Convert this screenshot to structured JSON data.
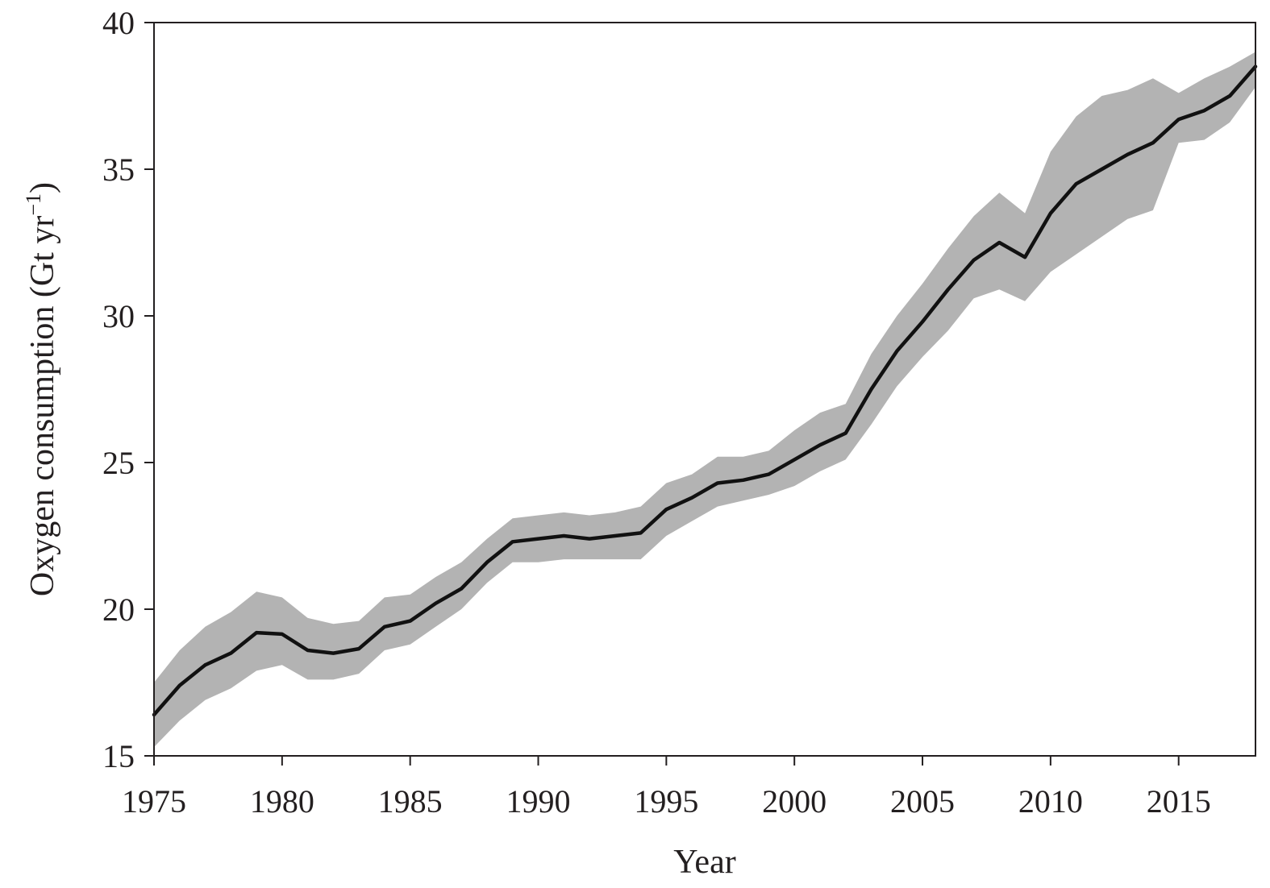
{
  "chart_data": {
    "type": "line",
    "xlabel": "Year",
    "ylabel_main": "Oxygen consumption (Gt yr",
    "ylabel_sup": "−1",
    "ylabel_close": ")",
    "xlim": [
      1975,
      2018
    ],
    "ylim": [
      15,
      40
    ],
    "xticks": [
      1975,
      1980,
      1985,
      1990,
      1995,
      2000,
      2005,
      2010,
      2015
    ],
    "yticks": [
      15,
      20,
      25,
      30,
      35,
      40
    ],
    "grid": false,
    "line_color": "#111111",
    "band_color": "#b3b3b3",
    "years": [
      1975,
      1976,
      1977,
      1978,
      1979,
      1980,
      1981,
      1982,
      1983,
      1984,
      1985,
      1986,
      1987,
      1988,
      1989,
      1990,
      1991,
      1992,
      1993,
      1994,
      1995,
      1996,
      1997,
      1998,
      1999,
      2000,
      2001,
      2002,
      2003,
      2004,
      2005,
      2006,
      2007,
      2008,
      2009,
      2010,
      2011,
      2012,
      2013,
      2014,
      2015,
      2016,
      2017,
      2018
    ],
    "series": [
      {
        "values": [
          16.4,
          17.4,
          18.1,
          18.5,
          19.2,
          19.15,
          18.6,
          18.5,
          18.65,
          19.4,
          19.6,
          20.2,
          20.7,
          21.6,
          22.3,
          22.4,
          22.5,
          22.4,
          22.5,
          22.6,
          23.4,
          23.8,
          24.3,
          24.4,
          24.6,
          25.1,
          25.6,
          26.0,
          27.5,
          28.8,
          29.8,
          30.9,
          31.9,
          32.5,
          32.0,
          33.5,
          34.5,
          35.0,
          35.5,
          35.9,
          36.7,
          37.0,
          37.5,
          38.5
        ]
      }
    ],
    "band_upper": [
      17.5,
      18.6,
      19.4,
      19.9,
      20.6,
      20.4,
      19.7,
      19.5,
      19.6,
      20.4,
      20.5,
      21.1,
      21.6,
      22.4,
      23.1,
      23.2,
      23.3,
      23.2,
      23.3,
      23.5,
      24.3,
      24.6,
      25.2,
      25.2,
      25.4,
      26.1,
      26.7,
      27.0,
      28.7,
      30.0,
      31.1,
      32.3,
      33.4,
      34.2,
      33.5,
      35.6,
      36.8,
      37.5,
      37.7,
      38.1,
      37.6,
      38.1,
      38.5,
      39.0
    ],
    "band_lower": [
      15.3,
      16.2,
      16.9,
      17.3,
      17.9,
      18.1,
      17.6,
      17.6,
      17.8,
      18.6,
      18.8,
      19.4,
      20.0,
      20.9,
      21.6,
      21.6,
      21.7,
      21.7,
      21.7,
      21.7,
      22.5,
      23.0,
      23.5,
      23.7,
      23.9,
      24.2,
      24.7,
      25.1,
      26.3,
      27.6,
      28.6,
      29.5,
      30.6,
      30.9,
      30.5,
      31.5,
      32.1,
      32.7,
      33.3,
      33.6,
      35.9,
      36.0,
      36.6,
      37.8
    ]
  }
}
